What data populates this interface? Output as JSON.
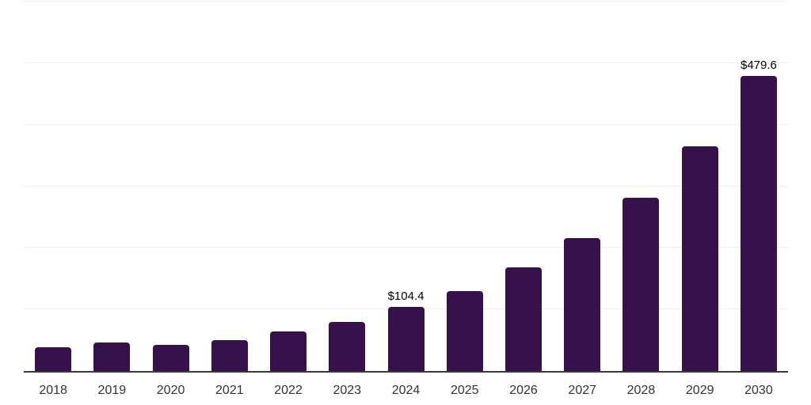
{
  "chart_data": {
    "type": "bar",
    "title": "",
    "xlabel": "",
    "ylabel": "",
    "categories": [
      "2018",
      "2019",
      "2020",
      "2021",
      "2022",
      "2023",
      "2024",
      "2025",
      "2026",
      "2027",
      "2028",
      "2029",
      "2030"
    ],
    "values": [
      38.5,
      46.3,
      42.1,
      50.1,
      64.2,
      80.0,
      104.4,
      129.8,
      168.9,
      215.9,
      280.8,
      365.4,
      479.6
    ],
    "data_labels": [
      "",
      "",
      "",
      "",
      "",
      "",
      "$104.4",
      "",
      "",
      "",
      "",
      "",
      "$479.6"
    ],
    "ylim": [
      0,
      600
    ],
    "grid_step": 100,
    "grid": "horizontal-only",
    "legend_position": "none",
    "colors": {
      "bar": "#36114a",
      "gridline": "#f0f0f0",
      "axis_line": "#3a3a3a",
      "x_label_text": "#333333",
      "value_label_text": "#000000",
      "background": "#ffffff"
    }
  }
}
